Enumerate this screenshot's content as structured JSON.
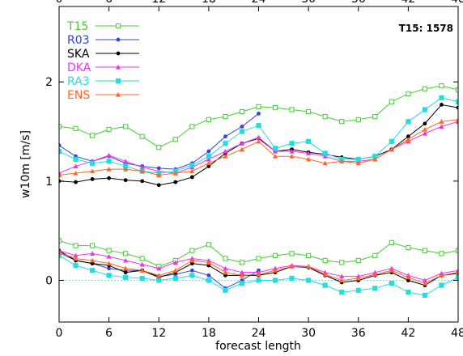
{
  "chart_data": {
    "type": "line",
    "annotation": "T15: 1578",
    "xlabel": "forecast length",
    "ylabel": "w10m [m/s]",
    "x": [
      0,
      2,
      4,
      6,
      8,
      10,
      12,
      14,
      16,
      18,
      20,
      22,
      24,
      26,
      28,
      30,
      32,
      34,
      36,
      38,
      40,
      42,
      44,
      46,
      48
    ],
    "xlim": [
      0,
      48
    ],
    "xticks": [
      0,
      6,
      12,
      18,
      24,
      30,
      36,
      42,
      48
    ],
    "ylim": [
      -0.42,
      2.76
    ],
    "yticks": [
      0,
      1,
      2
    ],
    "zero_line": true,
    "legend": "upper left",
    "series": [
      {
        "name": "T15",
        "color": "#44cc33",
        "marker": "open-square",
        "values": [
          1.55,
          1.53,
          1.46,
          1.52,
          1.55,
          1.45,
          1.34,
          1.42,
          1.55,
          1.62,
          1.65,
          1.7,
          1.75,
          1.74,
          1.72,
          1.7,
          1.65,
          1.6,
          1.62,
          1.65,
          1.8,
          1.88,
          1.93,
          1.96,
          1.92
        ],
        "lower_values": [
          0.4,
          0.35,
          0.35,
          0.3,
          0.27,
          0.22,
          0.14,
          0.2,
          0.3,
          0.36,
          0.22,
          0.18,
          0.22,
          0.25,
          0.27,
          0.25,
          0.2,
          0.18,
          0.2,
          0.25,
          0.38,
          0.33,
          0.3,
          0.27,
          0.3
        ]
      },
      {
        "name": "R03",
        "color": "#3344dd",
        "marker": "circle",
        "values": [
          1.36,
          1.25,
          1.2,
          1.25,
          1.18,
          1.15,
          1.13,
          1.12,
          1.18,
          1.3,
          1.45,
          1.55,
          1.68,
          null,
          null,
          null,
          null,
          null,
          null,
          null,
          null,
          null,
          null,
          null,
          null
        ],
        "lower_values": [
          0.28,
          0.2,
          0.17,
          0.12,
          0.1,
          0.1,
          0.04,
          0.06,
          0.1,
          0.05,
          -0.08,
          0.0,
          0.1,
          null,
          null,
          null,
          null,
          null,
          null,
          null,
          null,
          null,
          null,
          null,
          null
        ]
      },
      {
        "name": "SKA",
        "color": "#000000",
        "marker": "circle",
        "values": [
          1.0,
          0.99,
          1.02,
          1.03,
          1.01,
          1.0,
          0.96,
          0.99,
          1.04,
          1.15,
          1.28,
          1.38,
          1.43,
          1.3,
          1.32,
          1.29,
          1.27,
          1.24,
          1.22,
          1.25,
          1.32,
          1.45,
          1.58,
          1.77,
          1.74
        ],
        "lower_values": [
          0.3,
          0.2,
          0.17,
          0.15,
          0.08,
          0.1,
          0.03,
          0.08,
          0.17,
          0.15,
          0.05,
          0.05,
          0.05,
          0.08,
          0.14,
          0.13,
          0.05,
          -0.02,
          0.0,
          0.05,
          0.08,
          0.0,
          -0.05,
          0.05,
          0.07
        ]
      },
      {
        "name": "DKA",
        "color": "#ee33ee",
        "marker": "triangle",
        "values": [
          1.08,
          1.15,
          1.2,
          1.26,
          1.2,
          1.14,
          1.1,
          1.08,
          1.14,
          1.22,
          1.3,
          1.38,
          1.44,
          1.3,
          1.3,
          1.28,
          1.25,
          1.2,
          1.2,
          1.22,
          1.32,
          1.4,
          1.48,
          1.55,
          1.6
        ],
        "lower_values": [
          0.3,
          0.25,
          0.27,
          0.24,
          0.2,
          0.16,
          0.12,
          0.18,
          0.22,
          0.2,
          0.12,
          0.08,
          0.08,
          0.12,
          0.15,
          0.14,
          0.08,
          0.04,
          0.04,
          0.08,
          0.12,
          0.05,
          0.0,
          0.07,
          0.1
        ]
      },
      {
        "name": "RA3",
        "color": "#22dddd",
        "marker": "square",
        "values": [
          1.3,
          1.22,
          1.18,
          1.2,
          1.15,
          1.1,
          1.08,
          1.1,
          1.16,
          1.25,
          1.38,
          1.5,
          1.56,
          1.33,
          1.38,
          1.4,
          1.28,
          1.22,
          1.22,
          1.25,
          1.4,
          1.6,
          1.72,
          1.84,
          1.8
        ],
        "lower_values": [
          0.25,
          0.15,
          0.1,
          0.05,
          0.03,
          0.02,
          0.0,
          0.02,
          0.05,
          0.0,
          -0.1,
          -0.03,
          0.0,
          0.0,
          0.02,
          0.0,
          -0.05,
          -0.12,
          -0.1,
          -0.08,
          -0.03,
          -0.12,
          -0.15,
          -0.05,
          0.03
        ]
      },
      {
        "name": "ENS",
        "color": "#ff6622",
        "marker": "triangle",
        "values": [
          1.06,
          1.08,
          1.1,
          1.12,
          1.12,
          1.1,
          1.06,
          1.08,
          1.1,
          1.18,
          1.25,
          1.32,
          1.4,
          1.25,
          1.25,
          1.22,
          1.18,
          1.2,
          1.18,
          1.22,
          1.32,
          1.42,
          1.52,
          1.6,
          1.62
        ],
        "lower_values": [
          0.28,
          0.22,
          0.2,
          0.17,
          0.12,
          0.1,
          0.05,
          0.1,
          0.2,
          0.18,
          0.08,
          0.05,
          0.06,
          0.1,
          0.14,
          0.14,
          0.06,
          0.0,
          0.02,
          0.06,
          0.1,
          0.03,
          -0.03,
          0.05,
          0.08
        ]
      }
    ]
  }
}
